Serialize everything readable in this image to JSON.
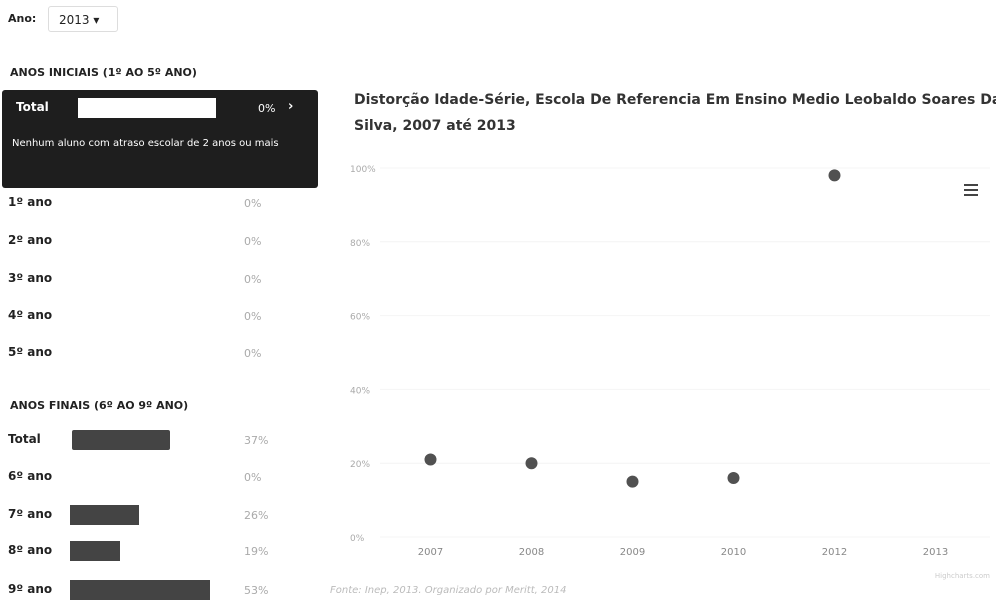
{
  "filter": {
    "label": "Ano:",
    "value": "2013"
  },
  "sections": [
    {
      "title": "ANOS INICIAIS (1º AO 5º ANO)",
      "total": {
        "label": "Total",
        "value": 0,
        "value_label": "0%",
        "note": "Nenhum aluno com atraso escolar de 2 anos ou mais"
      },
      "rows": [
        {
          "label": "1º ano",
          "value": 0,
          "value_label": "0%"
        },
        {
          "label": "2º ano",
          "value": 0,
          "value_label": "0%"
        },
        {
          "label": "3º ano",
          "value": 0,
          "value_label": "0%"
        },
        {
          "label": "4º ano",
          "value": 0,
          "value_label": "0%"
        },
        {
          "label": "5º ano",
          "value": 0,
          "value_label": "0%"
        }
      ]
    },
    {
      "title": "ANOS FINAIS (6º AO 9º ANO)",
      "total": {
        "label": "Total",
        "value": 37,
        "value_label": "37%"
      },
      "rows": [
        {
          "label": "6º ano",
          "value": 0,
          "value_label": "0%"
        },
        {
          "label": "7º ano",
          "value": 26,
          "value_label": "26%"
        },
        {
          "label": "8º ano",
          "value": 19,
          "value_label": "19%"
        },
        {
          "label": "9º ano",
          "value": 53,
          "value_label": "53%"
        }
      ]
    }
  ],
  "chart_data": {
    "type": "scatter",
    "title": "Distorção Idade-Série, Escola De Referencia Em Ensino Medio Leobaldo Soares Da Silva, 2007 até 2013",
    "categories": [
      "2007",
      "2008",
      "2009",
      "2010",
      "2012",
      "2013"
    ],
    "values": [
      21,
      20,
      15,
      16,
      98,
      null
    ],
    "color": "#333333",
    "ylim": [
      0,
      100
    ],
    "yticks": [
      {
        "value": 0,
        "label": "0%"
      },
      {
        "value": 20,
        "label": "20%"
      },
      {
        "value": 40,
        "label": "40%"
      },
      {
        "value": 60,
        "label": "60%"
      },
      {
        "value": 80,
        "label": "80%"
      },
      {
        "value": 100,
        "label": "100%"
      }
    ],
    "source": "Fonte: Inep, 2013. Organizado por Meritt, 2014",
    "credits": "Highcharts.com"
  }
}
